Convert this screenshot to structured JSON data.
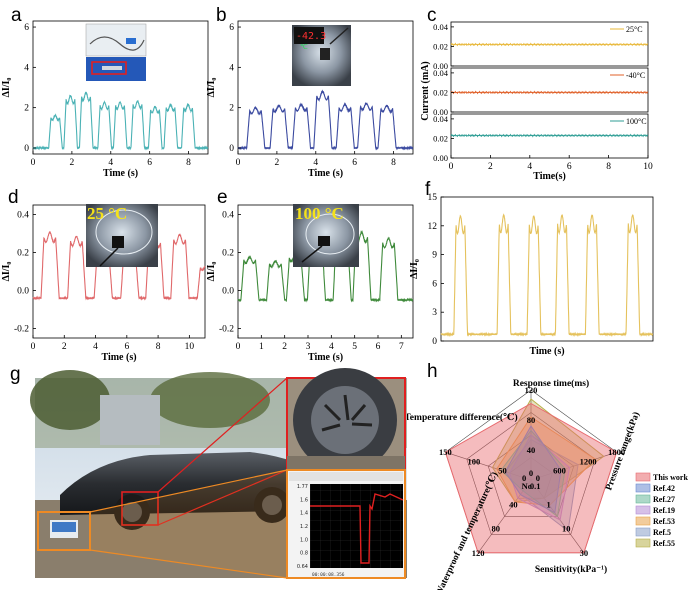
{
  "panels": {
    "a": {
      "label": "a"
    },
    "b": {
      "label": "b",
      "display_value": "-42.3",
      "display_unit": "℃"
    },
    "c": {
      "label": "c"
    },
    "d": {
      "label": "d",
      "condition": "25 °C"
    },
    "e": {
      "label": "e",
      "condition": "100 °C"
    },
    "f": {
      "label": "f"
    },
    "g": {
      "label": "g",
      "monitor_y_ticks": [
        "1.77",
        "1.6",
        "1.4",
        "1.2",
        "1.0",
        "0.8",
        "0.64"
      ],
      "monitor_time": "00:00:08.356"
    },
    "h": {
      "label": "h"
    }
  },
  "chart_data": [
    {
      "id": "a",
      "type": "line",
      "xlabel": "Time (s)",
      "ylabel": "ΔI/I₀",
      "xlim": [
        0,
        9
      ],
      "ylim": [
        -0.3,
        6.3
      ],
      "xticks": [
        0,
        2,
        4,
        6,
        8
      ],
      "yticks": [
        0,
        2,
        4,
        6
      ],
      "pulses": {
        "t0": [
          0.92,
          1.7,
          2.5,
          3.45,
          4.25,
          5.15,
          6.05,
          6.85,
          7.75
        ],
        "width": 0.45,
        "peak": [
          1.5,
          2.4,
          2.55,
          2.1,
          2.1,
          2.15,
          1.9,
          2.0,
          2.0
        ],
        "baseline": 0.0
      },
      "color": "#4bb2b5"
    },
    {
      "id": "b",
      "type": "line",
      "xlabel": "Time (s)",
      "ylabel": "ΔI/I₀",
      "xlim": [
        0,
        9
      ],
      "ylim": [
        -0.3,
        6.3
      ],
      "xticks": [
        0,
        2,
        4,
        6,
        8
      ],
      "yticks": [
        0,
        2,
        4,
        6
      ],
      "pulses": {
        "t0": [
          0.6,
          1.8,
          2.95,
          4.05,
          5.2,
          6.3,
          7.35
        ],
        "width": 0.6,
        "peak": [
          1.85,
          1.95,
          2.0,
          2.6,
          2.0,
          2.05,
          1.95
        ],
        "baseline": 0.0
      },
      "color": "#3b4aa0"
    },
    {
      "id": "c",
      "type": "line",
      "xlabel": "Time(s)",
      "ylabel": "Current (mA)",
      "xlim": [
        0,
        10
      ],
      "xticks": [
        0,
        2,
        4,
        6,
        8,
        10
      ],
      "series": [
        {
          "name": "25°C",
          "value": 0.022,
          "ylim": [
            0,
            0.045
          ],
          "yticks": [
            0.0,
            0.02,
            0.04
          ],
          "color": "#e8b83a"
        },
        {
          "name": "-40°C",
          "value": 0.02,
          "ylim": [
            0,
            0.045
          ],
          "yticks": [
            0.0,
            0.02,
            0.04
          ],
          "color": "#e0612a"
        },
        {
          "name": "100°C",
          "value": 0.023,
          "ylim": [
            0,
            0.045
          ],
          "yticks": [
            0.0,
            0.02,
            0.04
          ],
          "color": "#2f9e95"
        }
      ]
    },
    {
      "id": "d",
      "type": "line",
      "xlabel": "Time (s)",
      "ylabel": "ΔI/I₀",
      "xlim": [
        0,
        11
      ],
      "ylim": [
        -0.25,
        0.45
      ],
      "xticks": [
        0,
        2,
        4,
        6,
        8,
        10
      ],
      "yticks": [
        -0.2,
        0.0,
        0.2,
        0.4
      ],
      "pulses": {
        "t0": [
          0.7,
          2.4,
          4.1,
          5.8,
          7.4,
          9.0,
          10.7
        ],
        "width": 0.75,
        "peak": [
          0.28,
          0.26,
          0.2,
          0.19,
          0.25,
          0.27,
          0.12
        ],
        "baseline": -0.04
      },
      "color": "#e0686a"
    },
    {
      "id": "e",
      "type": "line",
      "xlabel": "Time (s)",
      "ylabel": "ΔI/I₀",
      "xlim": [
        0,
        7.5
      ],
      "ylim": [
        -0.25,
        0.45
      ],
      "xticks": [
        0,
        1,
        2,
        3,
        4,
        5,
        6,
        7
      ],
      "yticks": [
        -0.2,
        0.0,
        0.2,
        0.4
      ],
      "pulses": {
        "t0": [
          0.25,
          1.35,
          2.2,
          3.1,
          4.2,
          5.05,
          6.2
        ],
        "width": 0.5,
        "peak": [
          0.16,
          0.14,
          0.17,
          0.25,
          0.26,
          0.28,
          0.25
        ],
        "baseline": -0.05
      },
      "color": "#3f8a3b"
    },
    {
      "id": "f",
      "type": "line",
      "xlabel": "Time (s)",
      "ylabel": "ΔI/I₀",
      "xlim": [
        0,
        12
      ],
      "ylim": [
        0,
        15
      ],
      "yticks": [
        0,
        3,
        6,
        9,
        12,
        15
      ],
      "pulses": {
        "t0": [
          0.85,
          3.3,
          5.0,
          6.6,
          8.3,
          10.6
        ],
        "width": 0.5,
        "peak": [
          12.1,
          12.2,
          12.1,
          12.2,
          12.2,
          12.2
        ],
        "baseline": 0.7
      },
      "color": "#e5c25d"
    },
    {
      "id": "h",
      "type": "radar",
      "axes": [
        {
          "label": "Response time(ms)",
          "ticks": [
            "0",
            "40",
            "80",
            "120"
          ]
        },
        {
          "label": "Pressure range(kPa)",
          "ticks": [
            "0",
            "600",
            "1200",
            "1800"
          ]
        },
        {
          "label": "Sensitivity(kPa⁻¹)",
          "ticks": [
            "0.1",
            "1",
            "10",
            "30"
          ]
        },
        {
          "label": "Waterproof and temperature(℃)",
          "ticks": [
            "No",
            "40",
            "80",
            "120"
          ]
        },
        {
          "label": "Temperature difference(℃)",
          "ticks": [
            "0",
            "50",
            "100",
            "150"
          ]
        }
      ],
      "series": [
        {
          "name": "This work",
          "values": [
            0.85,
            1.0,
            1.0,
            1.0,
            1.0
          ],
          "color": "#e86a6e"
        },
        {
          "name": "Ref.42",
          "values": [
            0.6,
            0.35,
            0.45,
            0.2,
            0.3
          ],
          "color": "#6b8ad0"
        },
        {
          "name": "Ref.27",
          "values": [
            0.55,
            0.4,
            0.5,
            0.15,
            0.35
          ],
          "color": "#6ab89a"
        },
        {
          "name": "Ref.19",
          "values": [
            0.5,
            0.45,
            0.55,
            0.25,
            0.25
          ],
          "color": "#b48cd6"
        },
        {
          "name": "Ref.53",
          "values": [
            0.7,
            0.75,
            0.35,
            0.3,
            0.4
          ],
          "color": "#e8a24a"
        },
        {
          "name": "Ref.5",
          "values": [
            0.45,
            0.55,
            0.7,
            0.2,
            0.3
          ],
          "color": "#8aa0c8"
        },
        {
          "name": "Ref.55",
          "values": [
            0.9,
            0.85,
            0.25,
            0.3,
            0.45
          ],
          "color": "#b8b04a"
        }
      ]
    }
  ]
}
